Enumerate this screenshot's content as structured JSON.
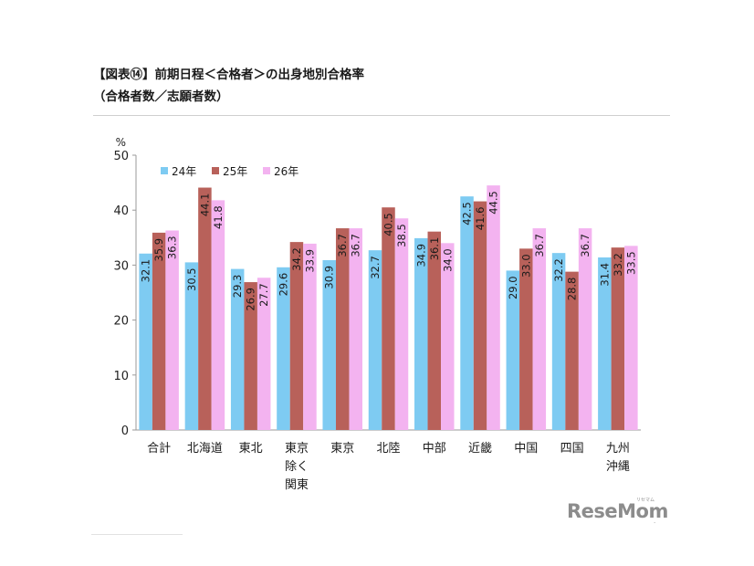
{
  "header": {
    "title_line1": "【図表⑭】前期日程＜合格者＞の出身地別合格率",
    "title_line2": "（合格者数／志願者数）"
  },
  "brand": {
    "text": "ReseMom",
    "tiny_text": "リセマム",
    "dot": "."
  },
  "chart_data": {
    "type": "bar",
    "ylabel": "%",
    "ylim": [
      0,
      50
    ],
    "yticks": [
      0,
      10,
      20,
      30,
      40,
      50
    ],
    "grid": false,
    "legend_position": "top-left",
    "categories": [
      [
        "合計"
      ],
      [
        "北海道"
      ],
      [
        "東北"
      ],
      [
        "東京",
        "除く",
        "関東"
      ],
      [
        "東京"
      ],
      [
        "北陸"
      ],
      [
        "中部"
      ],
      [
        "近畿"
      ],
      [
        "中国"
      ],
      [
        "四国"
      ],
      [
        "九州",
        "沖縄"
      ]
    ],
    "series": [
      {
        "name": "24年",
        "color": "#7ecbf2",
        "values": [
          32.1,
          30.5,
          29.3,
          29.6,
          30.9,
          32.7,
          34.9,
          42.5,
          29.0,
          32.2,
          31.4
        ]
      },
      {
        "name": "25年",
        "color": "#b8615a",
        "values": [
          35.9,
          44.1,
          26.9,
          34.2,
          36.7,
          40.5,
          36.1,
          41.6,
          33.0,
          28.8,
          33.2
        ]
      },
      {
        "name": "26年",
        "color": "#f3b3f0",
        "values": [
          36.3,
          41.8,
          27.7,
          33.9,
          36.7,
          38.5,
          34.0,
          44.5,
          36.7,
          36.7,
          33.5
        ]
      }
    ]
  }
}
